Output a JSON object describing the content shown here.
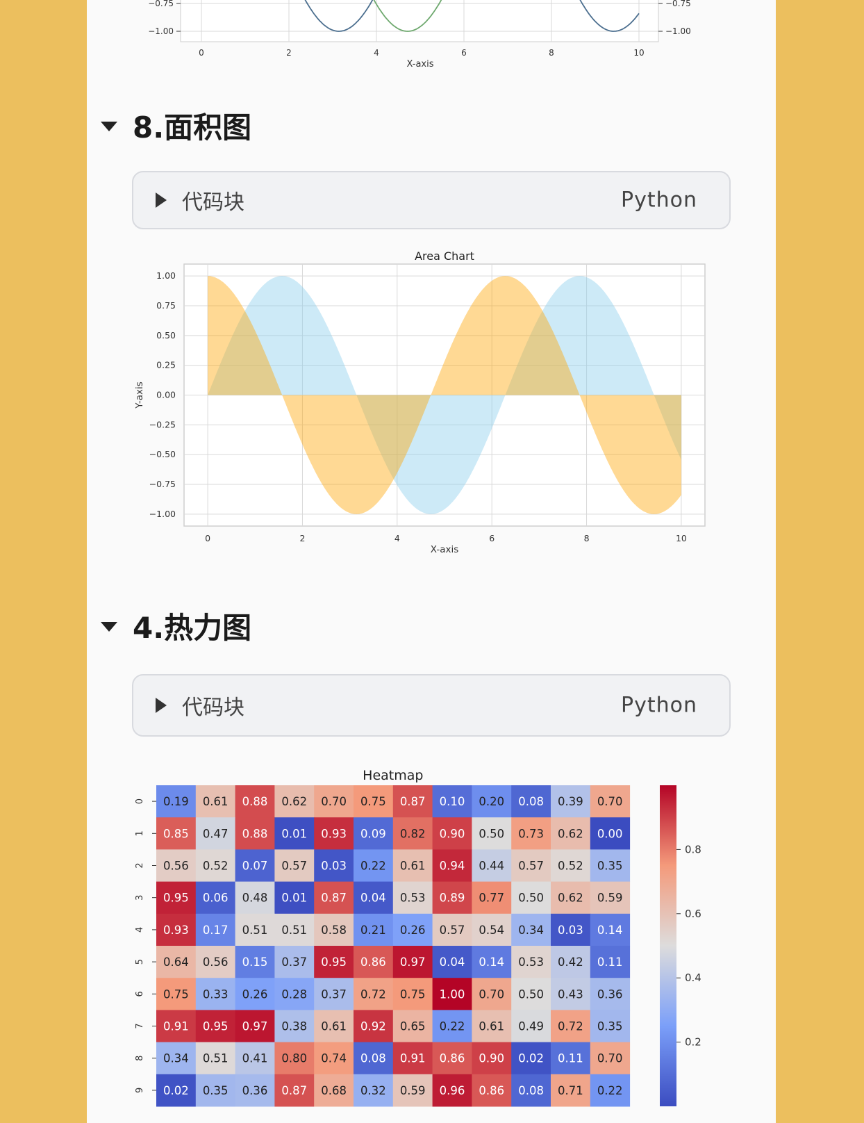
{
  "top_chart": {
    "xlabel": "X-axis",
    "x_ticks": [
      "0",
      "2",
      "4",
      "6",
      "8",
      "10"
    ],
    "y_ticks_left": [
      "−0.75",
      "−1.00"
    ],
    "y_ticks_right": [
      "−0.75",
      "−1.00"
    ],
    "series_colors": [
      "#4c6f8f",
      "#6fa96f"
    ]
  },
  "section_area": {
    "heading": "8.面积图",
    "code_label": "代码块",
    "code_lang": "Python"
  },
  "section_heatmap": {
    "heading": "4.热力图",
    "code_label": "代码块",
    "code_lang": "Python"
  },
  "chart_data": [
    {
      "type": "area",
      "title": "Area Chart",
      "xlabel": "X-axis",
      "ylabel": "Y-axis",
      "xlim": [
        -0.5,
        10.5
      ],
      "ylim": [
        -1.1,
        1.1
      ],
      "x_ticks": [
        0,
        2,
        4,
        6,
        8,
        10
      ],
      "y_ticks": [
        1.0,
        0.75,
        0.5,
        0.25,
        0.0,
        -0.25,
        -0.5,
        -0.75,
        -1.0
      ],
      "y_tick_labels": [
        "1.00",
        "0.75",
        "0.50",
        "0.25",
        "0.00",
        "−0.25",
        "−0.50",
        "−0.75",
        "−1.00"
      ],
      "grid": true,
      "series": [
        {
          "function": "sin(x)",
          "color": "#87ceeb",
          "x_range": [
            0,
            10
          ]
        },
        {
          "function": "cos(x)",
          "color": "#ffa500",
          "x_range": [
            0,
            10
          ]
        }
      ]
    },
    {
      "type": "heatmap",
      "title": "Heatmap",
      "row_labels": [
        "0",
        "1",
        "2",
        "3",
        "4",
        "5",
        "6",
        "7",
        "8",
        "9"
      ],
      "colorbar_ticks": [
        "0.8",
        "0.6",
        "0.4",
        "0.2"
      ],
      "colorbar_values": [
        0.8,
        0.6,
        0.4,
        0.2
      ],
      "values": [
        [
          "0.19",
          "0.61",
          "0.88",
          "0.62",
          "0.70",
          "0.75",
          "0.87",
          "0.10",
          "0.20",
          "0.08",
          "0.39",
          "0.70"
        ],
        [
          "0.85",
          "0.47",
          "0.88",
          "0.01",
          "0.93",
          "0.09",
          "0.82",
          "0.90",
          "0.50",
          "0.73",
          "0.62",
          "0.00"
        ],
        [
          "0.56",
          "0.52",
          "0.07",
          "0.57",
          "0.03",
          "0.22",
          "0.61",
          "0.94",
          "0.44",
          "0.57",
          "0.52",
          "0.35"
        ],
        [
          "0.95",
          "0.06",
          "0.48",
          "0.01",
          "0.87",
          "0.04",
          "0.53",
          "0.89",
          "0.77",
          "0.50",
          "0.62",
          "0.59"
        ],
        [
          "0.93",
          "0.17",
          "0.51",
          "0.51",
          "0.58",
          "0.21",
          "0.26",
          "0.57",
          "0.54",
          "0.34",
          "0.03",
          "0.14"
        ],
        [
          "0.64",
          "0.56",
          "0.15",
          "0.37",
          "0.95",
          "0.86",
          "0.97",
          "0.04",
          "0.14",
          "0.53",
          "0.42",
          "0.11"
        ],
        [
          "0.75",
          "0.33",
          "0.26",
          "0.28",
          "0.37",
          "0.72",
          "0.75",
          "1.00",
          "0.70",
          "0.50",
          "0.43",
          "0.36"
        ],
        [
          "0.91",
          "0.95",
          "0.97",
          "0.38",
          "0.61",
          "0.92",
          "0.65",
          "0.22",
          "0.61",
          "0.49",
          "0.72",
          "0.35"
        ],
        [
          "0.34",
          "0.51",
          "0.41",
          "0.80",
          "0.74",
          "0.08",
          "0.91",
          "0.86",
          "0.90",
          "0.02",
          "0.11",
          "0.70"
        ],
        [
          "0.02",
          "0.35",
          "0.36",
          "0.87",
          "0.68",
          "0.32",
          "0.59",
          "0.96",
          "0.86",
          "0.08",
          "0.71",
          "0.22"
        ]
      ],
      "colormap": "coolwarm"
    }
  ]
}
